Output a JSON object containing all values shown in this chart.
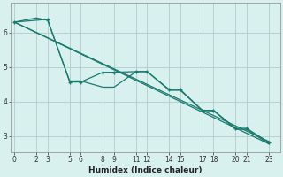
{
  "xlabel": "Humidex (Indice chaleur)",
  "ylabel": "",
  "bg_color": "#d8f0ee",
  "line_color": "#1a7a6e",
  "grid_color": "#b0cccb",
  "xtick_positions": [
    0,
    2,
    3,
    5,
    6,
    8,
    9,
    11,
    12,
    14,
    15,
    17,
    18,
    20,
    21,
    23
  ],
  "xtick_labels": [
    "0",
    "2",
    "3",
    "5",
    "6",
    "8",
    "9",
    "11",
    "12",
    "14",
    "15",
    "17",
    "18",
    "20",
    "21",
    "23"
  ],
  "ytick_positions": [
    3,
    4,
    5,
    6
  ],
  "xlim": [
    -0.3,
    24.0
  ],
  "ylim": [
    2.55,
    6.85
  ],
  "lines": [
    {
      "x": [
        0,
        23
      ],
      "y": [
        6.3,
        2.78
      ],
      "has_markers": false
    },
    {
      "x": [
        0,
        3,
        5,
        6,
        8,
        9,
        11,
        12,
        14,
        15,
        17,
        18,
        20,
        21,
        23
      ],
      "y": [
        6.3,
        6.38,
        4.57,
        4.57,
        4.85,
        4.85,
        4.87,
        4.87,
        4.35,
        4.35,
        3.75,
        3.75,
        3.23,
        3.23,
        2.82
      ],
      "has_markers": true
    },
    {
      "x": [
        0,
        2,
        3,
        5,
        6,
        8,
        9,
        11,
        12,
        14,
        15,
        17,
        18,
        20,
        21,
        23
      ],
      "y": [
        6.3,
        6.42,
        6.35,
        4.6,
        4.6,
        4.42,
        4.42,
        4.87,
        4.87,
        4.33,
        4.33,
        3.74,
        3.74,
        3.2,
        3.2,
        2.78
      ],
      "has_markers": false
    },
    {
      "x": [
        0,
        23
      ],
      "y": [
        6.3,
        2.85
      ],
      "has_markers": false
    }
  ]
}
